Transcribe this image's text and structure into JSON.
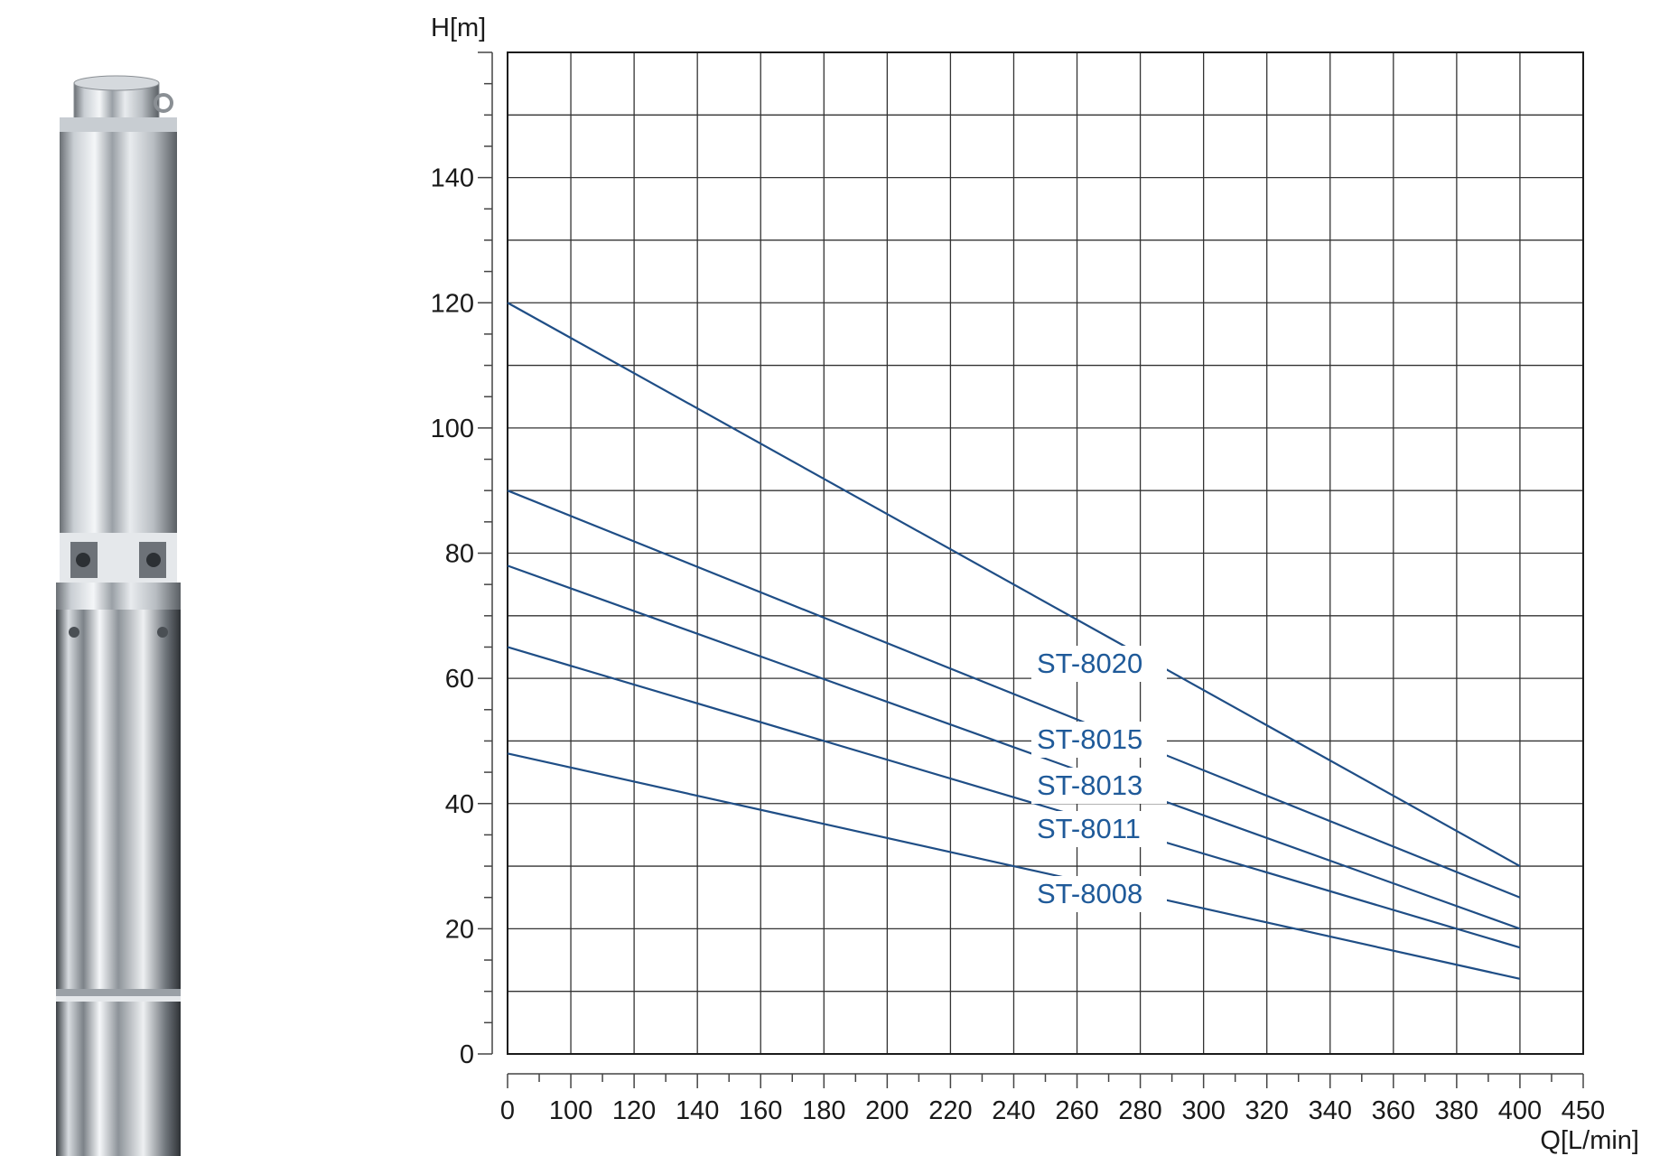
{
  "chart_data": {
    "type": "line",
    "ylabel": "H[m]",
    "xlabel": "Q[L/min]",
    "ylim": [
      0,
      160
    ],
    "y_ticks": [
      0,
      20,
      40,
      60,
      80,
      100,
      120,
      140
    ],
    "x_tick_labels": [
      "0",
      "100",
      "120",
      "140",
      "160",
      "180",
      "200",
      "220",
      "240",
      "260",
      "280",
      "300",
      "320",
      "340",
      "360",
      "380",
      "400",
      "450"
    ],
    "grid": true,
    "line_color": "#1f4e86",
    "label_color": "#1f5a99",
    "series": [
      {
        "name": "ST-8020",
        "x": [
          "0",
          "400"
        ],
        "y": [
          120,
          30
        ]
      },
      {
        "name": "ST-8015",
        "x": [
          "0",
          "400"
        ],
        "y": [
          90,
          25
        ]
      },
      {
        "name": "ST-8013",
        "x": [
          "0",
          "400"
        ],
        "y": [
          78,
          20
        ]
      },
      {
        "name": "ST-8011",
        "x": [
          "0",
          "400"
        ],
        "y": [
          65,
          17
        ]
      },
      {
        "name": "ST-8008",
        "x": [
          "0",
          "400"
        ],
        "y": [
          48,
          12
        ]
      }
    ]
  }
}
